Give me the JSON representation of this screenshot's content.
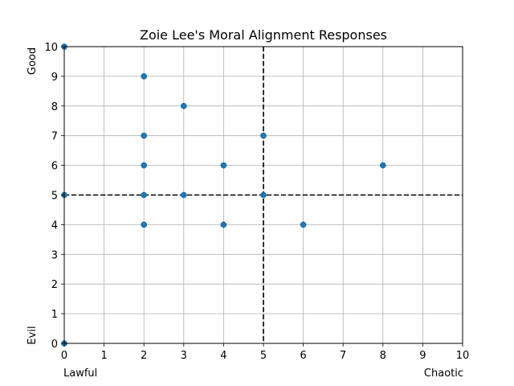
{
  "chart_data": {
    "type": "scatter",
    "title": "Zoie Lee's Moral Alignment Responses",
    "xlabel": "",
    "ylabel": "",
    "xlim": [
      0,
      10
    ],
    "ylim": [
      0,
      10
    ],
    "x_ticks": [
      "0",
      "1",
      "2",
      "3",
      "4",
      "5",
      "6",
      "7",
      "8",
      "9",
      "10"
    ],
    "y_ticks": [
      "0",
      "1",
      "2",
      "3",
      "4",
      "5",
      "6",
      "7",
      "8",
      "9",
      "10"
    ],
    "grid": true,
    "reference_lines": {
      "x": 5,
      "y": 5
    },
    "axis_end_labels": {
      "x_left": "Lawful",
      "x_right": "Chaotic",
      "y_top": "Good",
      "y_bottom": "Evil"
    },
    "series": [
      {
        "color": "#1f77b4",
        "points": [
          {
            "x": 0,
            "y": 10
          },
          {
            "x": 0,
            "y": 5
          },
          {
            "x": 0,
            "y": 0
          },
          {
            "x": 2,
            "y": 9
          },
          {
            "x": 2,
            "y": 7
          },
          {
            "x": 2,
            "y": 6
          },
          {
            "x": 2,
            "y": 5
          },
          {
            "x": 2,
            "y": 4
          },
          {
            "x": 3,
            "y": 8
          },
          {
            "x": 3,
            "y": 5
          },
          {
            "x": 4,
            "y": 6
          },
          {
            "x": 4,
            "y": 4
          },
          {
            "x": 5,
            "y": 7
          },
          {
            "x": 5,
            "y": 5
          },
          {
            "x": 6,
            "y": 4
          },
          {
            "x": 8,
            "y": 6
          }
        ]
      }
    ]
  }
}
